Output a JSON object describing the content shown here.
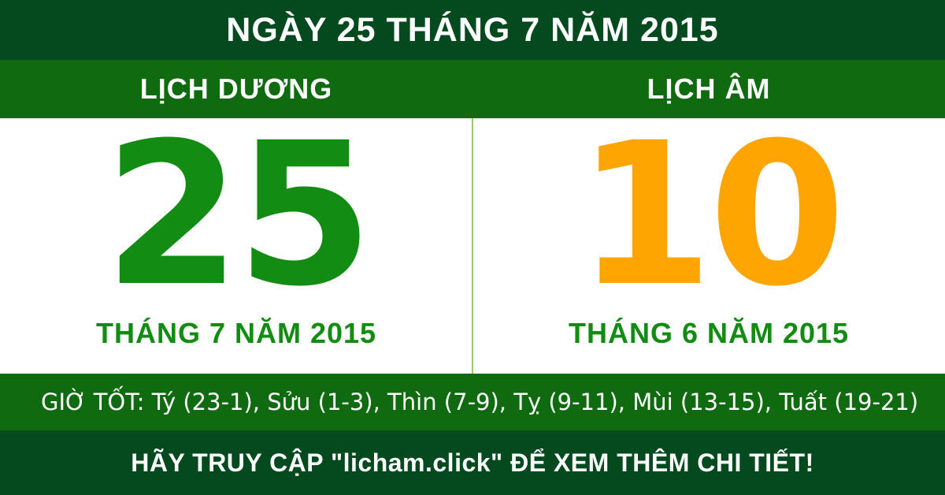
{
  "colors": {
    "dark_green": "#05491E",
    "medium_green": "#0F6A10",
    "bright_green": "#128C12",
    "orange": "#FFA502",
    "divider_green": "#9BCB6E",
    "text_white": "#FFFFFF",
    "panel_white": "#FFFFFF"
  },
  "header": {
    "title": "NGÀY 25 THÁNG 7 NĂM 2015"
  },
  "calendar": {
    "solar": {
      "label": "LỊCH DƯƠNG",
      "day": "25",
      "month_year": "THÁNG 7 NĂM 2015"
    },
    "lunar": {
      "label": "LỊCH ÂM",
      "day": "10",
      "month_year": "THÁNG 6 NĂM 2015"
    }
  },
  "good_hours": {
    "text": "GIỜ TỐT: Tý (23-1), Sửu (1-3), Thìn (7-9), Tỵ (9-11), Mùi (13-15), Tuất (19-21)"
  },
  "footer": {
    "text": "HÃY TRUY CẬP \"licham.click\" ĐỂ XEM THÊM CHI TIẾT!"
  }
}
